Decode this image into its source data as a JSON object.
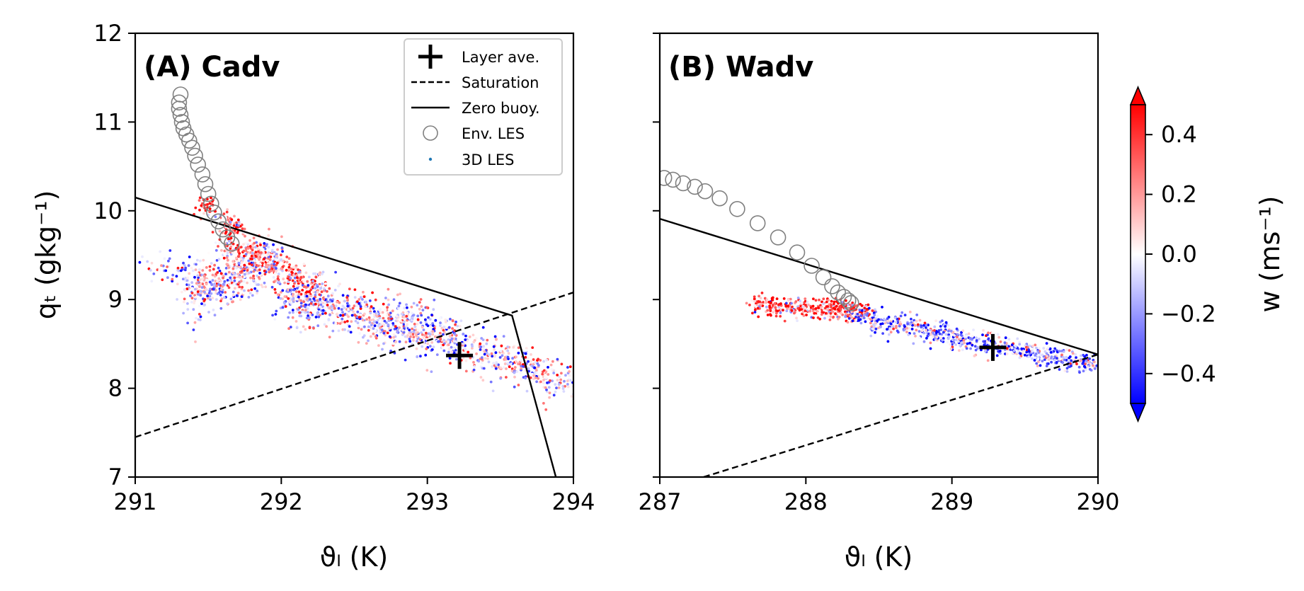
{
  "colors": {
    "positive_w": "#ff0000",
    "zero_w": "#ffffff",
    "negative_w": "#0000ff",
    "env_les_marker": "#808080",
    "layer_ave_marker": "#000000",
    "lines": "#000000"
  },
  "colorbar": {
    "label": "w (ms⁻¹)",
    "range": [
      -0.5,
      0.5
    ],
    "ticks": [
      0.4,
      0.2,
      0.0,
      -0.2,
      -0.4
    ],
    "tick_labels": [
      "0.4",
      "0.2",
      "0.0",
      "−0.2",
      "−0.4"
    ],
    "extend": "both",
    "colormap": "bwr"
  },
  "legend": {
    "location": "upper-right of panel A",
    "entries": [
      {
        "key": "layer",
        "label": "Layer ave.",
        "marker": "plus"
      },
      {
        "key": "sat",
        "label": "Saturation",
        "marker": "dashed-line"
      },
      {
        "key": "zero",
        "label": "Zero buoy.",
        "marker": "solid-line"
      },
      {
        "key": "env",
        "label": "Env. LES",
        "marker": "open-circle"
      },
      {
        "key": "les3d",
        "label": "3D LES",
        "marker": "small-dot"
      }
    ]
  },
  "chart_data": [
    {
      "type": "scatter",
      "title": "(A) Cadv",
      "xlabel": "ϑₗ (K)",
      "ylabel": "qₜ (gkg⁻¹)",
      "xlim": [
        291,
        294
      ],
      "ylim": [
        7,
        12
      ],
      "xticks": [
        291,
        292,
        293,
        294
      ],
      "yticks": [
        7,
        8,
        9,
        10,
        11,
        12
      ],
      "xtick_labels": [
        "291",
        "292",
        "293",
        "294"
      ],
      "ytick_labels": [
        "7",
        "8",
        "9",
        "10",
        "11",
        "12"
      ],
      "grid": false,
      "layer_average": {
        "x": 293.22,
        "y": 8.37
      },
      "saturation_line": {
        "x": [
          291.0,
          294.0
        ],
        "y": [
          7.45,
          9.08
        ]
      },
      "zero_buoyancy_line": {
        "x": [
          291.0,
          293.58,
          293.88
        ],
        "y": [
          10.15,
          8.82,
          7.0
        ]
      },
      "env_les": [
        {
          "x": 291.31,
          "y": 11.31
        },
        {
          "x": 291.3,
          "y": 11.22
        },
        {
          "x": 291.3,
          "y": 11.15
        },
        {
          "x": 291.31,
          "y": 11.08
        },
        {
          "x": 291.32,
          "y": 11.0
        },
        {
          "x": 291.33,
          "y": 10.93
        },
        {
          "x": 291.35,
          "y": 10.86
        },
        {
          "x": 291.37,
          "y": 10.79
        },
        {
          "x": 291.39,
          "y": 10.71
        },
        {
          "x": 291.41,
          "y": 10.62
        },
        {
          "x": 291.43,
          "y": 10.52
        },
        {
          "x": 291.46,
          "y": 10.41
        },
        {
          "x": 291.48,
          "y": 10.3
        },
        {
          "x": 291.5,
          "y": 10.19
        },
        {
          "x": 291.52,
          "y": 10.08
        },
        {
          "x": 291.54,
          "y": 9.98
        },
        {
          "x": 291.57,
          "y": 9.88
        },
        {
          "x": 291.6,
          "y": 9.79
        },
        {
          "x": 291.63,
          "y": 9.7
        },
        {
          "x": 291.66,
          "y": 9.63
        }
      ],
      "les3d_clouds": [
        {
          "x0": 291.35,
          "y0": 9.08,
          "x1": 292.0,
          "y1": 9.45,
          "spread": 0.33,
          "n": 520,
          "w_bias": 0.0
        },
        {
          "x0": 291.45,
          "y0": 10.1,
          "x1": 291.75,
          "y1": 9.72,
          "spread": 0.14,
          "n": 90,
          "w_bias": 0.35
        },
        {
          "x0": 291.6,
          "y0": 9.65,
          "x1": 292.3,
          "y1": 9.1,
          "spread": 0.2,
          "n": 260,
          "w_bias": 0.25
        },
        {
          "x0": 292.0,
          "y0": 9.05,
          "x1": 293.2,
          "y1": 8.55,
          "spread": 0.3,
          "n": 820,
          "w_bias": -0.05
        },
        {
          "x0": 293.2,
          "y0": 8.5,
          "x1": 294.0,
          "y1": 8.05,
          "spread": 0.26,
          "n": 340,
          "w_bias": 0.0
        },
        {
          "x0": 291.05,
          "y0": 9.35,
          "x1": 291.5,
          "y1": 9.35,
          "spread": 0.22,
          "n": 50,
          "w_bias": -0.1
        }
      ]
    },
    {
      "type": "scatter",
      "title": "(B) Wadv",
      "xlabel": "ϑₗ (K)",
      "ylabel": "",
      "xlim": [
        287,
        290
      ],
      "ylim": [
        7,
        12
      ],
      "xticks": [
        287,
        288,
        289,
        290
      ],
      "yticks": [
        7,
        8,
        9,
        10,
        11,
        12
      ],
      "xtick_labels": [
        "287",
        "288",
        "289",
        "290"
      ],
      "ytick_labels": [],
      "grid": false,
      "layer_average": {
        "x": 289.28,
        "y": 8.46
      },
      "saturation_line": {
        "x": [
          287.3,
          290.0
        ],
        "y": [
          7.0,
          8.38
        ]
      },
      "zero_buoyancy_line": {
        "x": [
          287.0,
          290.0
        ],
        "y": [
          9.91,
          8.38
        ]
      },
      "env_les": [
        {
          "x": 287.03,
          "y": 10.37
        },
        {
          "x": 287.09,
          "y": 10.35
        },
        {
          "x": 287.16,
          "y": 10.31
        },
        {
          "x": 287.24,
          "y": 10.27
        },
        {
          "x": 287.31,
          "y": 10.22
        },
        {
          "x": 287.41,
          "y": 10.14
        },
        {
          "x": 287.53,
          "y": 10.02
        },
        {
          "x": 287.67,
          "y": 9.86
        },
        {
          "x": 287.81,
          "y": 9.7
        },
        {
          "x": 287.94,
          "y": 9.53
        },
        {
          "x": 288.04,
          "y": 9.38
        },
        {
          "x": 288.12,
          "y": 9.25
        },
        {
          "x": 288.18,
          "y": 9.15
        },
        {
          "x": 288.22,
          "y": 9.08
        },
        {
          "x": 288.26,
          "y": 9.03
        },
        {
          "x": 288.29,
          "y": 8.99
        },
        {
          "x": 288.31,
          "y": 8.96
        }
      ],
      "les3d_clouds": [
        {
          "x0": 287.65,
          "y0": 8.95,
          "x1": 288.4,
          "y1": 8.85,
          "spread": 0.12,
          "n": 330,
          "w_bias": 0.3
        },
        {
          "x0": 288.2,
          "y0": 8.95,
          "x1": 288.4,
          "y1": 8.85,
          "spread": 0.08,
          "n": 80,
          "w_bias": 0.45
        },
        {
          "x0": 288.3,
          "y0": 8.82,
          "x1": 290.0,
          "y1": 8.25,
          "spread": 0.14,
          "n": 650,
          "w_bias": -0.2
        }
      ]
    }
  ]
}
